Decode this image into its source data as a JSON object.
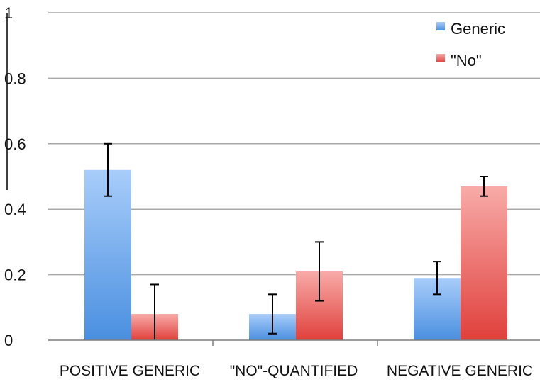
{
  "chart_data": {
    "type": "bar",
    "title": "",
    "xlabel": "",
    "ylabel": "",
    "ylim": [
      0,
      1
    ],
    "yticks": [
      {
        "value": 0,
        "label": "0"
      },
      {
        "value": 0.2,
        "label": "0.2"
      },
      {
        "value": 0.4,
        "label": "0.4"
      },
      {
        "value": 0.6,
        "label": "0.6"
      },
      {
        "value": 0.8,
        "label": "0.8"
      },
      {
        "value": 1,
        "label": "1"
      }
    ],
    "grid": true,
    "legend_position": "top-right",
    "categories": [
      "POSITIVE GENERIC",
      "\"NO\"-QUANTIFIED",
      "NEGATIVE GENERIC"
    ],
    "series": [
      {
        "name": "Generic",
        "color": "#4a8fe0",
        "color_light": "#a8cdfa",
        "values": [
          0.52,
          0.08,
          0.19
        ],
        "error_low": [
          0.44,
          0.02,
          0.14
        ],
        "error_high": [
          0.6,
          0.14,
          0.24
        ]
      },
      {
        "name": "\"No\"",
        "color": "#e0403c",
        "color_light": "#f8aba8",
        "values": [
          0.08,
          0.21,
          0.47
        ],
        "error_low": [
          0.0,
          0.12,
          0.44
        ],
        "error_high": [
          0.17,
          0.3,
          0.5
        ]
      }
    ]
  }
}
